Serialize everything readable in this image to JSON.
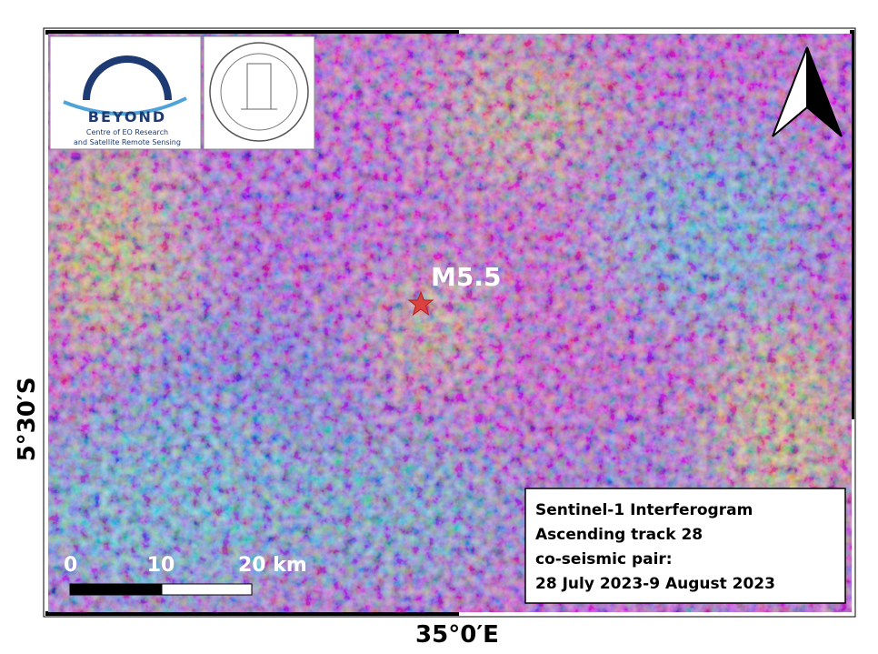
{
  "logos": {
    "beyond": {
      "name": "BEYOND",
      "lines": [
        "Centre of EO Research",
        "and Satellite Remote Sensing"
      ]
    }
  },
  "map": {
    "epicenter_label": "M5.5",
    "legend": [
      "Sentinel-1 Interferogram",
      "Ascending track 28",
      "co-seismic pair:",
      "28 July 2023-9 August 2023"
    ],
    "scale_bar": [
      "0",
      "10",
      "20 km"
    ],
    "lat_label": "5°30′S",
    "lon_label": "35°0′E"
  }
}
